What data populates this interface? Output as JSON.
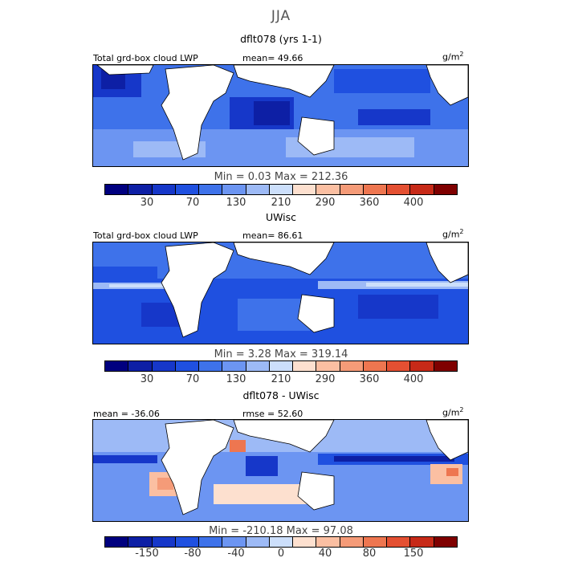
{
  "figure": {
    "title": "JJA"
  },
  "panels": [
    {
      "id": "model",
      "title": "dflt078 (yrs 1-1)",
      "header_left": "Total grd-box cloud LWP",
      "header_mid": "mean=   49.66",
      "units": "g/m",
      "units_sup": "2",
      "min_max": "Min =    0.03  Max =  212.36",
      "colorbar_ticks": [
        "30",
        "70",
        "130",
        "210",
        "290",
        "360",
        "400"
      ],
      "colorbar_colors": [
        "#00007f",
        "#0d1fa5",
        "#1637c9",
        "#1f50e0",
        "#3e72ea",
        "#6c95f2",
        "#9dbaf6",
        "#ccdffb",
        "#fde0cf",
        "#fbbfa2",
        "#f59b78",
        "#ee7650",
        "#e45032",
        "#c72a18",
        "#7f0000"
      ]
    },
    {
      "id": "obs",
      "title": "UWisc",
      "header_left": "Total grd-box cloud LWP",
      "header_mid": "mean=   86.61",
      "units": "g/m",
      "units_sup": "2",
      "min_max": "Min =     3.28  Max =  319.14",
      "colorbar_ticks": [
        "30",
        "70",
        "130",
        "210",
        "290",
        "360",
        "400"
      ],
      "colorbar_colors": [
        "#00007f",
        "#0d1fa5",
        "#1637c9",
        "#1f50e0",
        "#3e72ea",
        "#6c95f2",
        "#9dbaf6",
        "#ccdffb",
        "#fde0cf",
        "#fbbfa2",
        "#f59b78",
        "#ee7650",
        "#e45032",
        "#c72a18",
        "#7f0000"
      ]
    },
    {
      "id": "diff",
      "title": "dflt078 - UWisc",
      "header_left": "mean = -36.06",
      "header_mid": "rmse =   52.60",
      "units": "g/m",
      "units_sup": "2",
      "min_max": "Min = -210.18  Max =   97.08",
      "colorbar_ticks": [
        "-150",
        "-80",
        "-40",
        "0",
        "40",
        "80",
        "150"
      ],
      "colorbar_colors": [
        "#00007f",
        "#0d1fa5",
        "#1637c9",
        "#1f50e0",
        "#3e72ea",
        "#6c95f2",
        "#9dbaf6",
        "#ccdffb",
        "#fde0cf",
        "#fbbfa2",
        "#f59b78",
        "#ee7650",
        "#e45032",
        "#c72a18",
        "#7f0000"
      ]
    }
  ],
  "colors": {
    "land": "#ffffff",
    "model_base": "#3e72ea",
    "obs_base": "#1f50e0",
    "diff_base": "#6c95f2"
  }
}
